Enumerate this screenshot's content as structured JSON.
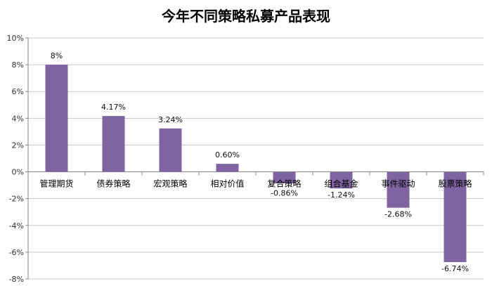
{
  "chart_data": {
    "type": "bar",
    "title": "今年不同策略私募产品表现",
    "categories": [
      "管理期货",
      "债券策略",
      "宏观策略",
      "相对价值",
      "复合策略",
      "组合基金",
      "事件驱动",
      "股票策略"
    ],
    "values": [
      8,
      4.17,
      3.24,
      0.6,
      -0.86,
      -1.24,
      -2.68,
      -6.74
    ],
    "data_labels": [
      "8%",
      "4.17%",
      "3.24%",
      "0.60%",
      "-0.86%",
      "-1.24%",
      "-2.68%",
      "-6.74%"
    ],
    "ylim": [
      -8,
      10
    ],
    "yticks": [
      10,
      8,
      6,
      4,
      2,
      0,
      -2,
      -4,
      -6,
      -8
    ],
    "ytick_labels": [
      "10%",
      "8%",
      "6%",
      "4%",
      "2%",
      "0%",
      "-2%",
      "-4%",
      "-6%",
      "-8%"
    ],
    "xlabel": "",
    "ylabel": "",
    "grid": true,
    "legend": "none",
    "bar_color": "#8064A2",
    "grid_color": "#c8c8c8"
  }
}
